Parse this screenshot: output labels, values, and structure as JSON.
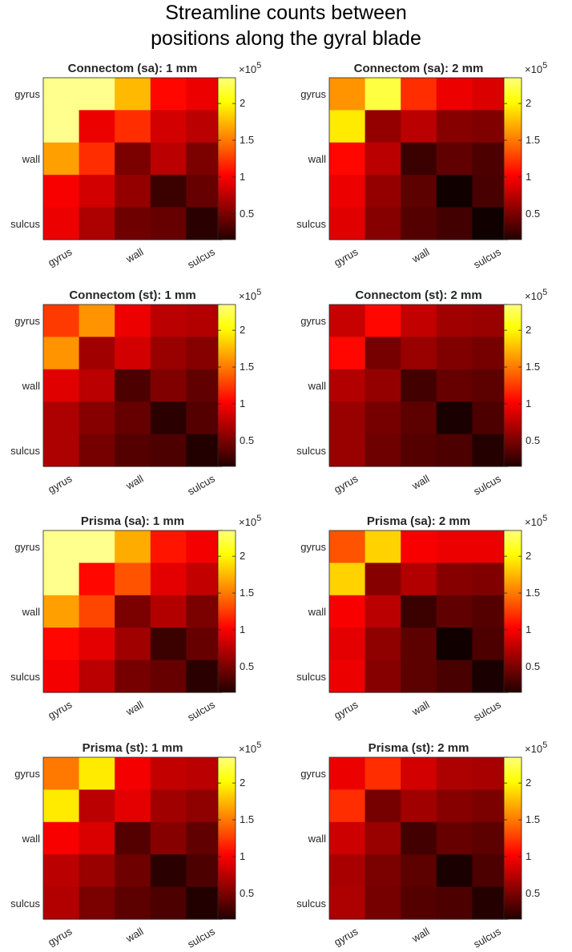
{
  "figure": {
    "title_line1": "Streamline counts between",
    "title_line2": "positions along the gyral blade"
  },
  "colorbar": {
    "ticks": [
      0.5,
      1,
      1.5,
      2
    ],
    "tick_labels": [
      "0.5",
      "1",
      "1.5",
      "2"
    ],
    "exponent_base": "×10",
    "exponent_power": "5",
    "colormap": "hot",
    "range": [
      0.15,
      2.35
    ]
  },
  "chart_data": [
    {
      "type": "heatmap",
      "title": "Connectom (sa): 1 mm",
      "xticklabels": [
        "gyrus",
        "wall",
        "sulcus"
      ],
      "yticklabels": [
        "gyrus",
        "wall",
        "sulcus"
      ],
      "clim_e5": [
        0.15,
        2.35
      ],
      "values_e5": [
        [
          2.4,
          2.4,
          1.75,
          1.05,
          0.95
        ],
        [
          2.4,
          0.95,
          1.2,
          0.85,
          0.75
        ],
        [
          1.65,
          1.2,
          0.5,
          0.75,
          0.5
        ],
        [
          1.0,
          0.85,
          0.6,
          0.25,
          0.42
        ],
        [
          0.95,
          0.7,
          0.45,
          0.42,
          0.18
        ]
      ]
    },
    {
      "type": "heatmap",
      "title": "Connectom (sa): 2 mm",
      "xticklabels": [
        "gyrus",
        "wall",
        "sulcus"
      ],
      "yticklabels": [
        "gyrus",
        "wall",
        "sulcus"
      ],
      "clim_e5": [
        0.15,
        2.35
      ],
      "values_e5": [
        [
          1.6,
          2.2,
          1.2,
          0.95,
          0.88
        ],
        [
          1.95,
          0.6,
          0.75,
          0.55,
          0.52
        ],
        [
          1.05,
          0.75,
          0.25,
          0.4,
          0.32
        ],
        [
          0.95,
          0.6,
          0.38,
          0.08,
          0.3
        ],
        [
          0.9,
          0.55,
          0.35,
          0.28,
          0.08
        ]
      ]
    },
    {
      "type": "heatmap",
      "title": "Connectom (st): 1 mm",
      "xticklabels": [
        "gyrus",
        "wall",
        "sulcus"
      ],
      "yticklabels": [
        "gyrus",
        "wall",
        "sulcus"
      ],
      "clim_e5": [
        0.15,
        2.35
      ],
      "values_e5": [
        [
          1.25,
          1.6,
          0.95,
          0.75,
          0.72
        ],
        [
          1.6,
          0.65,
          0.85,
          0.62,
          0.55
        ],
        [
          0.9,
          0.75,
          0.32,
          0.52,
          0.4
        ],
        [
          0.7,
          0.55,
          0.42,
          0.18,
          0.35
        ],
        [
          0.7,
          0.48,
          0.35,
          0.32,
          0.15
        ]
      ]
    },
    {
      "type": "heatmap",
      "title": "Connectom (st): 2 mm",
      "xticklabels": [
        "gyrus",
        "wall",
        "sulcus"
      ],
      "yticklabels": [
        "gyrus",
        "wall",
        "sulcus"
      ],
      "clim_e5": [
        0.15,
        2.35
      ],
      "values_e5": [
        [
          0.8,
          1.05,
          0.78,
          0.65,
          0.62
        ],
        [
          1.05,
          0.48,
          0.62,
          0.52,
          0.48
        ],
        [
          0.72,
          0.6,
          0.28,
          0.42,
          0.38
        ],
        [
          0.62,
          0.48,
          0.38,
          0.12,
          0.32
        ],
        [
          0.62,
          0.45,
          0.35,
          0.32,
          0.16
        ]
      ]
    },
    {
      "type": "heatmap",
      "title": "Prisma (sa): 1 mm",
      "xticklabels": [
        "gyrus",
        "wall",
        "sulcus"
      ],
      "yticklabels": [
        "gyrus",
        "wall",
        "sulcus"
      ],
      "clim_e5": [
        0.15,
        2.35
      ],
      "values_e5": [
        [
          2.4,
          2.4,
          1.7,
          1.1,
          0.98
        ],
        [
          2.4,
          1.05,
          1.35,
          0.92,
          0.78
        ],
        [
          1.65,
          1.3,
          0.5,
          0.72,
          0.5
        ],
        [
          1.05,
          0.92,
          0.65,
          0.25,
          0.42
        ],
        [
          0.98,
          0.75,
          0.48,
          0.42,
          0.18
        ]
      ]
    },
    {
      "type": "heatmap",
      "title": "Prisma (sa): 2 mm",
      "xticklabels": [
        "gyrus",
        "wall",
        "sulcus"
      ],
      "yticklabels": [
        "gyrus",
        "wall",
        "sulcus"
      ],
      "clim_e5": [
        0.15,
        2.35
      ],
      "values_e5": [
        [
          1.35,
          1.85,
          1.0,
          0.95,
          0.95
        ],
        [
          1.85,
          0.55,
          0.72,
          0.55,
          0.52
        ],
        [
          1.0,
          0.75,
          0.25,
          0.4,
          0.35
        ],
        [
          0.92,
          0.58,
          0.38,
          0.08,
          0.32
        ],
        [
          0.95,
          0.55,
          0.38,
          0.3,
          0.12
        ]
      ]
    },
    {
      "type": "heatmap",
      "title": "Prisma (st): 1 mm",
      "xticklabels": [
        "gyrus",
        "wall",
        "sulcus"
      ],
      "yticklabels": [
        "gyrus",
        "wall",
        "sulcus"
      ],
      "clim_e5": [
        0.15,
        2.35
      ],
      "values_e5": [
        [
          1.5,
          1.95,
          0.98,
          0.78,
          0.75
        ],
        [
          1.95,
          0.75,
          0.92,
          0.65,
          0.58
        ],
        [
          1.0,
          0.88,
          0.35,
          0.55,
          0.4
        ],
        [
          0.75,
          0.62,
          0.45,
          0.18,
          0.32
        ],
        [
          0.72,
          0.5,
          0.38,
          0.32,
          0.15
        ]
      ]
    },
    {
      "type": "heatmap",
      "title": "Prisma (st): 2 mm",
      "xticklabels": [
        "gyrus",
        "wall",
        "sulcus"
      ],
      "yticklabels": [
        "gyrus",
        "wall",
        "sulcus"
      ],
      "clim_e5": [
        0.15,
        2.35
      ],
      "values_e5": [
        [
          0.95,
          1.2,
          0.85,
          0.7,
          0.68
        ],
        [
          1.2,
          0.48,
          0.65,
          0.55,
          0.5
        ],
        [
          0.82,
          0.62,
          0.28,
          0.42,
          0.38
        ],
        [
          0.68,
          0.5,
          0.38,
          0.12,
          0.32
        ],
        [
          0.7,
          0.48,
          0.35,
          0.32,
          0.16
        ]
      ]
    }
  ]
}
